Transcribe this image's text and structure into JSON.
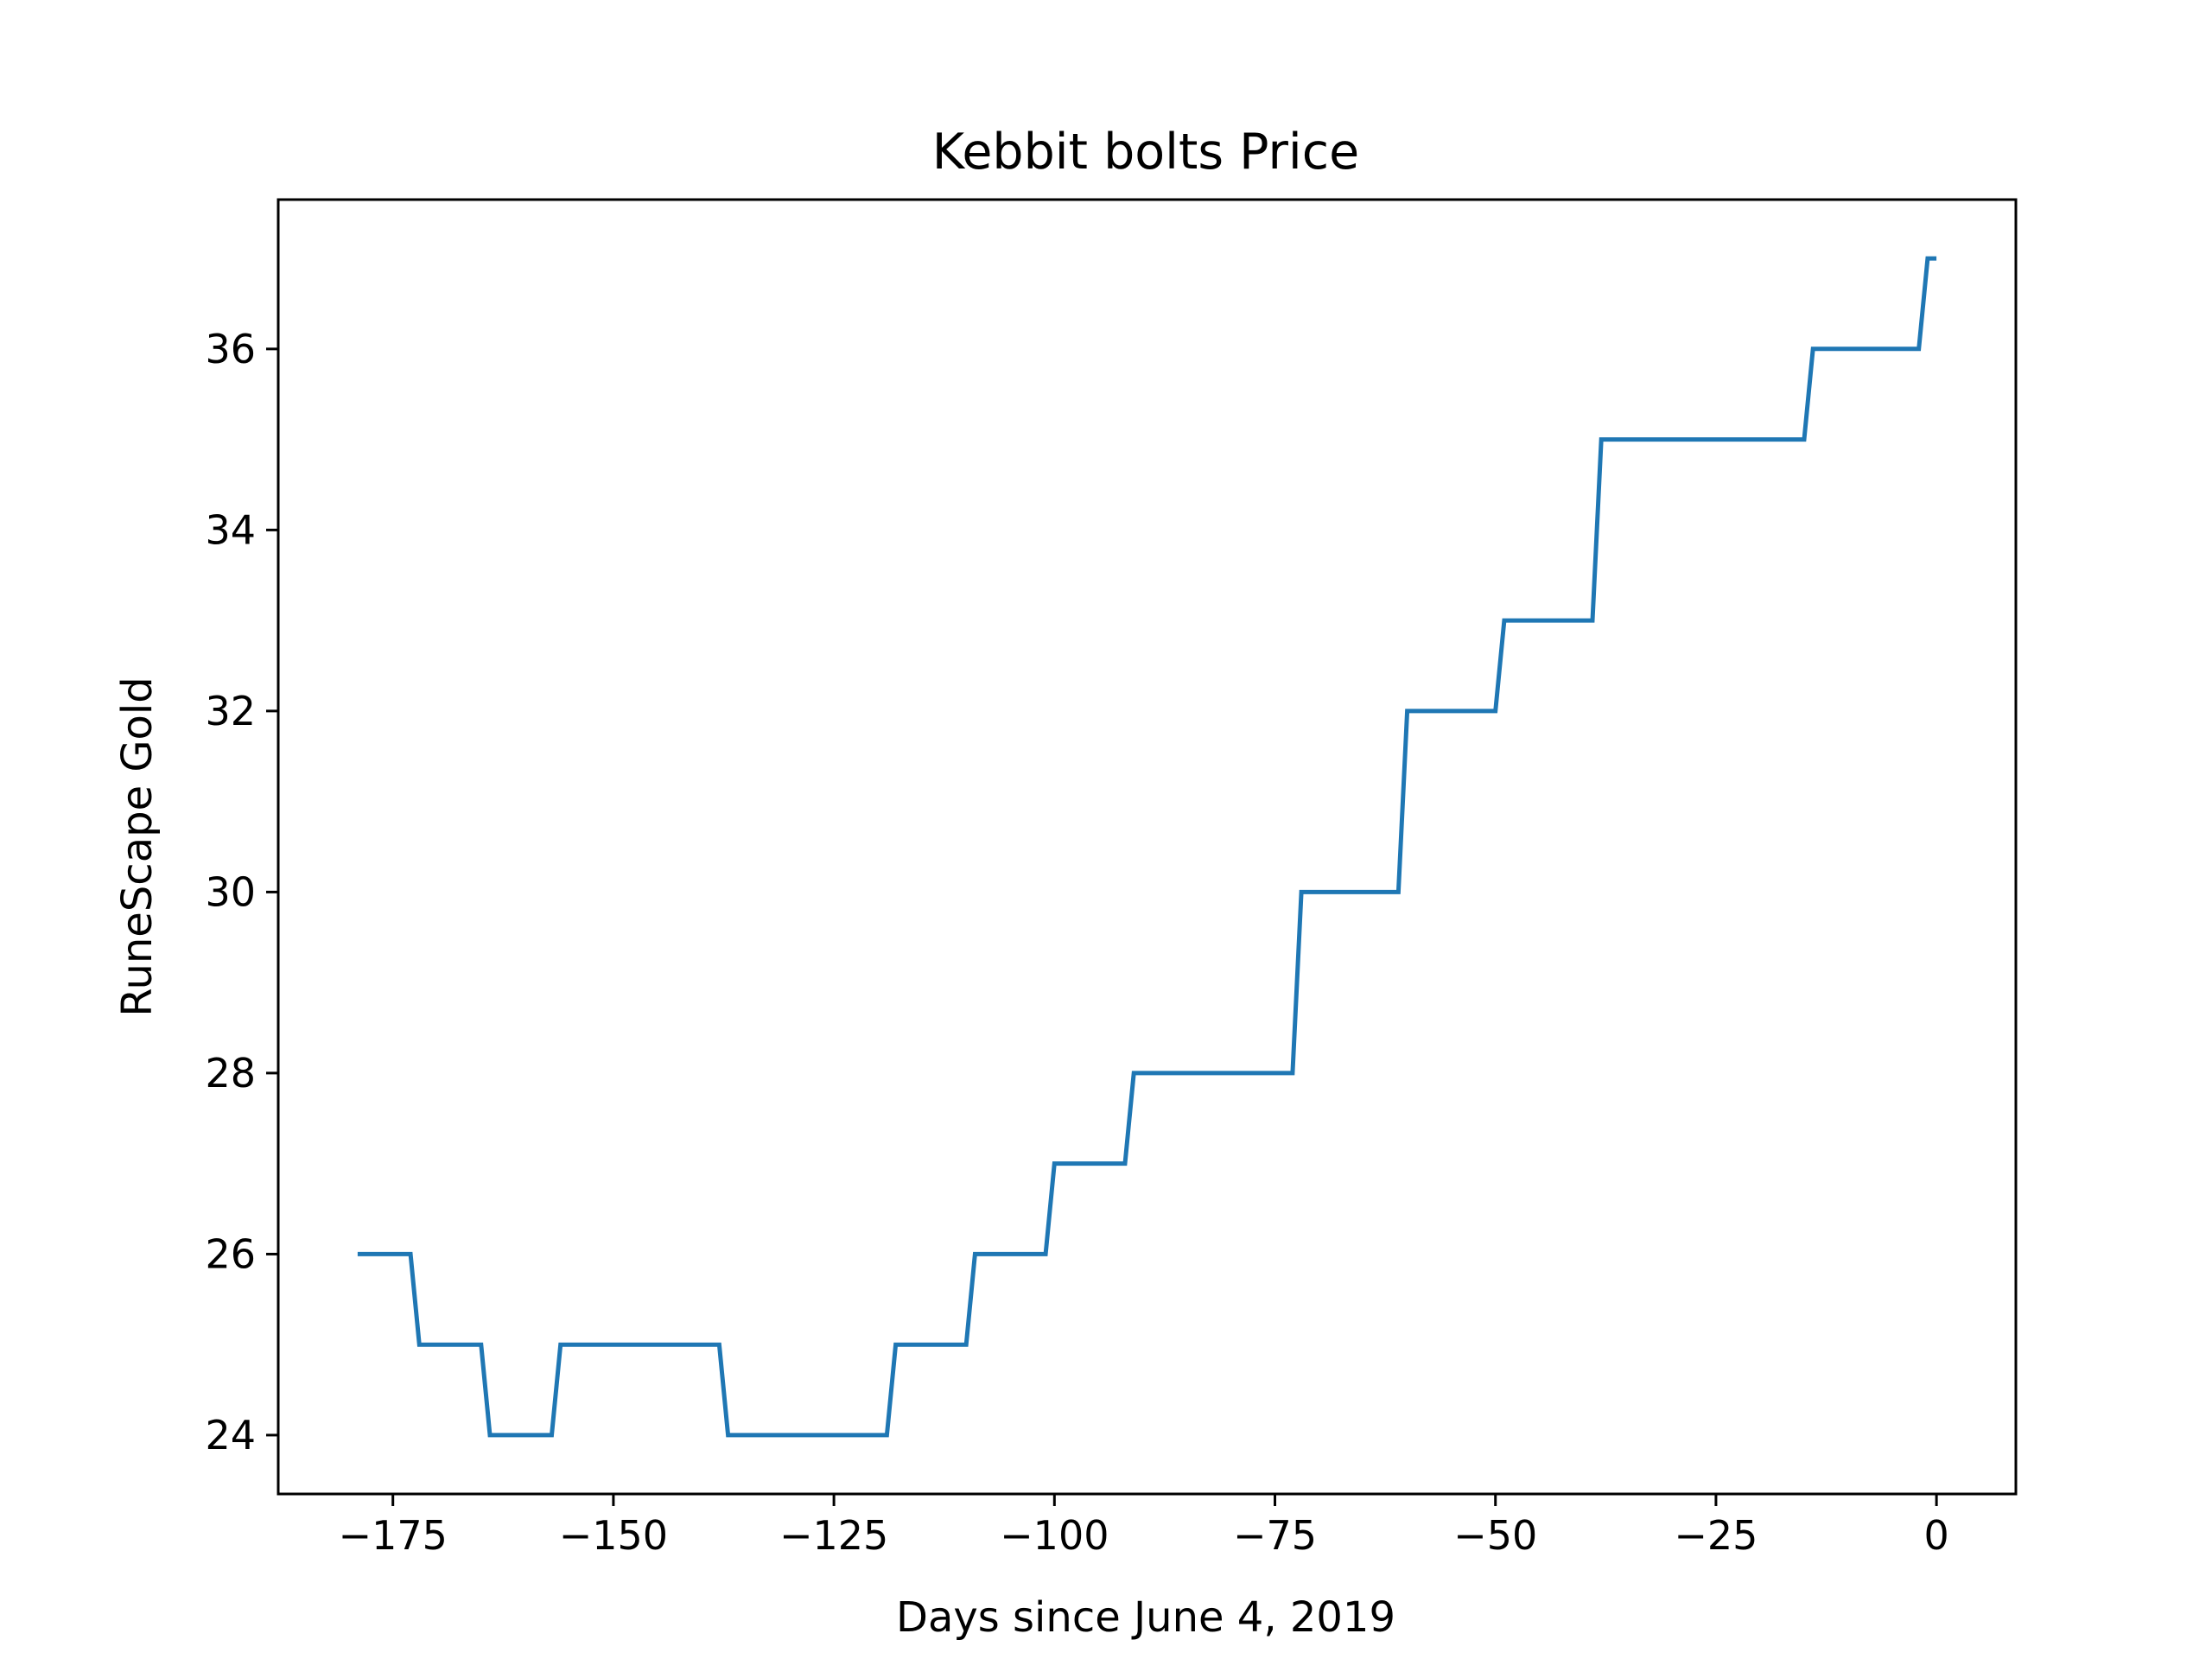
{
  "chart_data": {
    "type": "line",
    "title": "Kebbit bolts Price",
    "xlabel": "Days since June 4, 2019",
    "ylabel": "RuneScape Gold",
    "xlim": [
      -188,
      9
    ],
    "ylim": [
      23.35,
      37.65
    ],
    "xticks": [
      -175,
      -150,
      -125,
      -100,
      -75,
      -50,
      -25,
      0
    ],
    "xtick_labels": [
      "−175",
      "−150",
      "−125",
      "−100",
      "−75",
      "−50",
      "−25",
      "0"
    ],
    "yticks": [
      24,
      26,
      28,
      30,
      32,
      34,
      36
    ],
    "ytick_labels": [
      "24",
      "26",
      "28",
      "30",
      "32",
      "34",
      "36"
    ],
    "grid": false,
    "series": [
      {
        "color": "#1f77b4",
        "points": [
          [
            -179,
            26
          ],
          [
            -173,
            26
          ],
          [
            -172,
            25
          ],
          [
            -165,
            25
          ],
          [
            -164,
            24
          ],
          [
            -157,
            24
          ],
          [
            -156,
            25
          ],
          [
            -138,
            25
          ],
          [
            -137,
            24
          ],
          [
            -119,
            24
          ],
          [
            -118,
            25
          ],
          [
            -110,
            25
          ],
          [
            -109,
            26
          ],
          [
            -101,
            26
          ],
          [
            -100,
            27
          ],
          [
            -92,
            27
          ],
          [
            -91,
            28
          ],
          [
            -73,
            28
          ],
          [
            -72,
            30
          ],
          [
            -61,
            30
          ],
          [
            -60,
            32
          ],
          [
            -50,
            32
          ],
          [
            -49,
            33
          ],
          [
            -39,
            33
          ],
          [
            -38,
            35
          ],
          [
            -15,
            35
          ],
          [
            -14,
            36
          ],
          [
            -2,
            36
          ],
          [
            -1,
            37
          ],
          [
            0,
            37
          ]
        ]
      }
    ]
  }
}
